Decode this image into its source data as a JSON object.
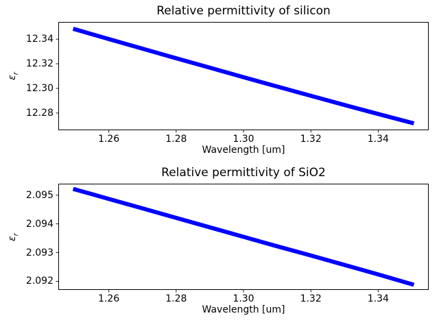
{
  "figure": {
    "background_color": "#ffffff",
    "text_color": "#000000",
    "spine_color": "#000000"
  },
  "chart_data": [
    {
      "type": "line",
      "title": "Relative permittivity of silicon",
      "xlabel": "Wavelength [um]",
      "ylabel": "εr",
      "ylabel_symbol": "ε",
      "ylabel_sub": "r",
      "line_color": "#0000ff",
      "line_width": 6,
      "grid": false,
      "legend": "none",
      "xlim": [
        1.245,
        1.355
      ],
      "ylim": [
        12.266,
        12.354
      ],
      "xticks": [
        "1.26",
        "1.28",
        "1.30",
        "1.32",
        "1.34"
      ],
      "yticks": [
        "12.28",
        "12.30",
        "12.32",
        "12.34"
      ],
      "x": [
        1.25,
        1.26,
        1.27,
        1.28,
        1.29,
        1.3,
        1.31,
        1.32,
        1.33,
        1.34,
        1.35
      ],
      "y": [
        12.348,
        12.3401,
        12.3323,
        12.3245,
        12.3168,
        12.3091,
        12.3015,
        12.294,
        12.2865,
        12.2792,
        12.272
      ]
    },
    {
      "type": "line",
      "title": "Relative permittivity of SiO2",
      "xlabel": "Wavelength [um]",
      "ylabel": "εr",
      "ylabel_symbol": "ε",
      "ylabel_sub": "r",
      "line_color": "#0000ff",
      "line_width": 6,
      "grid": false,
      "legend": "none",
      "xlim": [
        1.245,
        1.355
      ],
      "ylim": [
        2.0917,
        2.0954
      ],
      "xticks": [
        "1.26",
        "1.28",
        "1.30",
        "1.32",
        "1.34"
      ],
      "yticks": [
        "2.092",
        "2.093",
        "2.094",
        "2.095"
      ],
      "x": [
        1.25,
        1.26,
        1.27,
        1.28,
        1.29,
        1.3,
        1.31,
        1.32,
        1.33,
        1.34,
        1.35
      ],
      "y": [
        2.0952,
        2.09487,
        2.09454,
        2.09421,
        2.09388,
        2.09355,
        2.09322,
        2.0929,
        2.09257,
        2.09224,
        2.0919
      ]
    }
  ]
}
